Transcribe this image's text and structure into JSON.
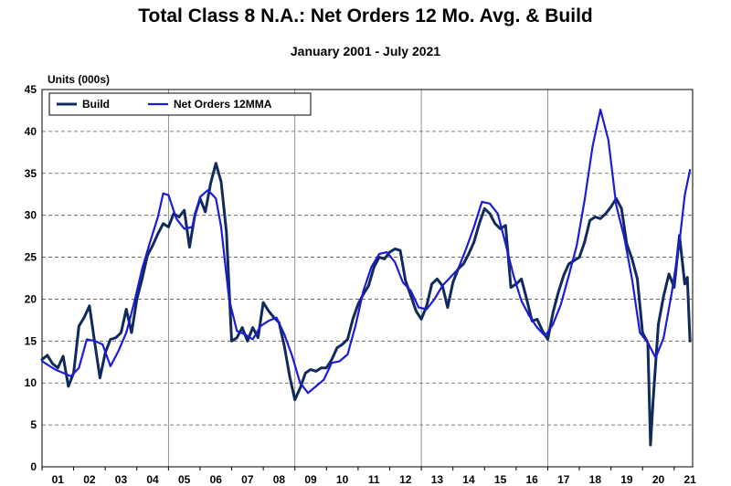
{
  "chart_data": {
    "type": "line",
    "title": "Total Class 8 N.A.: Net Orders 12 Mo. Avg. & Build",
    "subtitle": "January 2001 - July 2021",
    "ylabel": "Units (000s)",
    "xlabel": "",
    "ylim": [
      0,
      45
    ],
    "yticks": [
      0,
      5,
      10,
      15,
      20,
      25,
      30,
      35,
      40,
      45
    ],
    "xlim": [
      "2001-01",
      "2021-07"
    ],
    "x_tick_labels": [
      "01",
      "02",
      "03",
      "04",
      "05",
      "06",
      "07",
      "08",
      "09",
      "10",
      "11",
      "12",
      "13",
      "14",
      "15",
      "16",
      "17",
      "18",
      "19",
      "20",
      "21"
    ],
    "grid": true,
    "legend_position": "top-left",
    "series": [
      {
        "name": "Build",
        "color": "#102a5c",
        "points": [
          [
            "2001-01",
            12.8
          ],
          [
            "2001-03",
            13.3
          ],
          [
            "2001-05",
            12.3
          ],
          [
            "2001-07",
            11.8
          ],
          [
            "2001-09",
            13.2
          ],
          [
            "2001-11",
            9.6
          ],
          [
            "2002-01",
            11.2
          ],
          [
            "2002-03",
            16.8
          ],
          [
            "2002-05",
            17.8
          ],
          [
            "2002-07",
            19.2
          ],
          [
            "2002-09",
            14.8
          ],
          [
            "2002-11",
            10.6
          ],
          [
            "2003-01",
            13.6
          ],
          [
            "2003-03",
            15.2
          ],
          [
            "2003-05",
            15.4
          ],
          [
            "2003-07",
            16.0
          ],
          [
            "2003-09",
            18.8
          ],
          [
            "2003-11",
            16.0
          ],
          [
            "2004-01",
            20.0
          ],
          [
            "2004-03",
            22.4
          ],
          [
            "2004-05",
            25.2
          ],
          [
            "2004-07",
            26.4
          ],
          [
            "2004-09",
            27.8
          ],
          [
            "2004-11",
            29.0
          ],
          [
            "2005-01",
            28.6
          ],
          [
            "2005-03",
            30.2
          ],
          [
            "2005-05",
            29.8
          ],
          [
            "2005-07",
            30.6
          ],
          [
            "2005-09",
            26.2
          ],
          [
            "2005-11",
            30.0
          ],
          [
            "2006-01",
            32.0
          ],
          [
            "2006-03",
            30.4
          ],
          [
            "2006-05",
            33.8
          ],
          [
            "2006-07",
            36.2
          ],
          [
            "2006-09",
            34.0
          ],
          [
            "2006-11",
            28.0
          ],
          [
            "2007-01",
            15.0
          ],
          [
            "2007-03",
            15.4
          ],
          [
            "2007-05",
            16.6
          ],
          [
            "2007-07",
            15.0
          ],
          [
            "2007-09",
            16.6
          ],
          [
            "2007-11",
            15.4
          ],
          [
            "2008-01",
            19.6
          ],
          [
            "2008-03",
            18.6
          ],
          [
            "2008-05",
            17.8
          ],
          [
            "2008-07",
            17.2
          ],
          [
            "2008-09",
            14.4
          ],
          [
            "2008-11",
            10.8
          ],
          [
            "2009-01",
            8.0
          ],
          [
            "2009-03",
            9.4
          ],
          [
            "2009-05",
            11.2
          ],
          [
            "2009-07",
            11.6
          ],
          [
            "2009-09",
            11.4
          ],
          [
            "2009-11",
            11.8
          ],
          [
            "2010-01",
            11.8
          ],
          [
            "2010-03",
            12.8
          ],
          [
            "2010-05",
            14.2
          ],
          [
            "2010-07",
            14.6
          ],
          [
            "2010-09",
            15.2
          ],
          [
            "2010-11",
            17.6
          ],
          [
            "2011-01",
            19.4
          ],
          [
            "2011-03",
            20.6
          ],
          [
            "2011-05",
            21.6
          ],
          [
            "2011-07",
            23.8
          ],
          [
            "2011-09",
            25.0
          ],
          [
            "2011-11",
            24.8
          ],
          [
            "2012-01",
            25.6
          ],
          [
            "2012-03",
            26.0
          ],
          [
            "2012-05",
            25.8
          ],
          [
            "2012-07",
            22.2
          ],
          [
            "2012-09",
            20.4
          ],
          [
            "2012-11",
            18.6
          ],
          [
            "2013-01",
            17.6
          ],
          [
            "2013-03",
            19.2
          ],
          [
            "2013-05",
            21.8
          ],
          [
            "2013-07",
            22.4
          ],
          [
            "2013-09",
            21.6
          ],
          [
            "2013-11",
            19.0
          ],
          [
            "2014-01",
            22.0
          ],
          [
            "2014-03",
            23.6
          ],
          [
            "2014-05",
            24.2
          ],
          [
            "2014-07",
            25.4
          ],
          [
            "2014-09",
            26.8
          ],
          [
            "2014-11",
            29.0
          ],
          [
            "2015-01",
            30.8
          ],
          [
            "2015-03",
            30.2
          ],
          [
            "2015-05",
            29.0
          ],
          [
            "2015-07",
            28.4
          ],
          [
            "2015-09",
            28.8
          ],
          [
            "2015-11",
            21.4
          ],
          [
            "2016-01",
            21.8
          ],
          [
            "2016-03",
            22.4
          ],
          [
            "2016-05",
            20.0
          ],
          [
            "2016-07",
            17.4
          ],
          [
            "2016-09",
            17.6
          ],
          [
            "2016-11",
            16.2
          ],
          [
            "2017-01",
            15.2
          ],
          [
            "2017-03",
            18.4
          ],
          [
            "2017-05",
            20.8
          ],
          [
            "2017-07",
            22.8
          ],
          [
            "2017-09",
            24.2
          ],
          [
            "2017-11",
            24.6
          ],
          [
            "2018-01",
            25.0
          ],
          [
            "2018-03",
            26.8
          ],
          [
            "2018-05",
            29.4
          ],
          [
            "2018-07",
            29.8
          ],
          [
            "2018-09",
            29.6
          ],
          [
            "2018-11",
            30.2
          ],
          [
            "2019-01",
            31.0
          ],
          [
            "2019-03",
            32.0
          ],
          [
            "2019-05",
            30.8
          ],
          [
            "2019-07",
            26.6
          ],
          [
            "2019-09",
            24.8
          ],
          [
            "2019-11",
            22.4
          ],
          [
            "2020-01",
            16.0
          ],
          [
            "2020-03",
            14.8
          ],
          [
            "2020-04",
            2.6
          ],
          [
            "2020-05",
            8.0
          ],
          [
            "2020-07",
            17.0
          ],
          [
            "2020-09",
            20.4
          ],
          [
            "2020-11",
            23.0
          ],
          [
            "2021-01",
            21.4
          ],
          [
            "2021-03",
            27.6
          ],
          [
            "2021-05",
            21.8
          ],
          [
            "2021-06",
            22.6
          ],
          [
            "2021-07",
            15.0
          ]
        ]
      },
      {
        "name": "Net Orders 12MMA",
        "color": "#1c1cd8",
        "points": [
          [
            "2001-01",
            12.6
          ],
          [
            "2001-06",
            11.6
          ],
          [
            "2001-12",
            10.8
          ],
          [
            "2002-03",
            11.8
          ],
          [
            "2002-06",
            15.2
          ],
          [
            "2002-09",
            15.0
          ],
          [
            "2002-12",
            14.6
          ],
          [
            "2003-03",
            12.0
          ],
          [
            "2003-06",
            13.8
          ],
          [
            "2003-09",
            16.0
          ],
          [
            "2003-12",
            19.6
          ],
          [
            "2004-03",
            23.6
          ],
          [
            "2004-06",
            26.8
          ],
          [
            "2004-09",
            29.8
          ],
          [
            "2004-11",
            32.6
          ],
          [
            "2005-01",
            32.4
          ],
          [
            "2005-04",
            29.6
          ],
          [
            "2005-07",
            28.4
          ],
          [
            "2005-10",
            28.6
          ],
          [
            "2006-01",
            32.2
          ],
          [
            "2006-04",
            33.0
          ],
          [
            "2006-07",
            32.0
          ],
          [
            "2006-09",
            28.6
          ],
          [
            "2006-12",
            20.0
          ],
          [
            "2007-03",
            16.2
          ],
          [
            "2007-06",
            15.8
          ],
          [
            "2007-09",
            15.2
          ],
          [
            "2007-12",
            16.8
          ],
          [
            "2008-03",
            17.4
          ],
          [
            "2008-06",
            17.8
          ],
          [
            "2008-09",
            15.8
          ],
          [
            "2008-12",
            13.2
          ],
          [
            "2009-03",
            10.0
          ],
          [
            "2009-06",
            8.8
          ],
          [
            "2009-09",
            9.6
          ],
          [
            "2009-12",
            10.4
          ],
          [
            "2010-03",
            12.4
          ],
          [
            "2010-06",
            12.6
          ],
          [
            "2010-09",
            13.4
          ],
          [
            "2010-12",
            16.8
          ],
          [
            "2011-03",
            21.0
          ],
          [
            "2011-06",
            23.8
          ],
          [
            "2011-09",
            25.4
          ],
          [
            "2011-12",
            25.6
          ],
          [
            "2012-03",
            24.4
          ],
          [
            "2012-06",
            22.0
          ],
          [
            "2012-09",
            21.0
          ],
          [
            "2012-12",
            19.0
          ],
          [
            "2013-03",
            18.8
          ],
          [
            "2013-06",
            20.0
          ],
          [
            "2013-09",
            21.6
          ],
          [
            "2013-12",
            22.6
          ],
          [
            "2014-03",
            23.6
          ],
          [
            "2014-06",
            26.0
          ],
          [
            "2014-09",
            28.6
          ],
          [
            "2014-12",
            31.6
          ],
          [
            "2015-03",
            31.4
          ],
          [
            "2015-06",
            30.2
          ],
          [
            "2015-09",
            26.6
          ],
          [
            "2015-12",
            22.8
          ],
          [
            "2016-03",
            19.8
          ],
          [
            "2016-06",
            18.0
          ],
          [
            "2016-09",
            16.6
          ],
          [
            "2016-12",
            15.6
          ],
          [
            "2017-03",
            17.0
          ],
          [
            "2017-06",
            19.4
          ],
          [
            "2017-09",
            22.8
          ],
          [
            "2017-12",
            26.4
          ],
          [
            "2018-03",
            31.8
          ],
          [
            "2018-06",
            38.2
          ],
          [
            "2018-09",
            42.6
          ],
          [
            "2018-12",
            39.0
          ],
          [
            "2019-03",
            31.2
          ],
          [
            "2019-06",
            27.4
          ],
          [
            "2019-09",
            22.4
          ],
          [
            "2019-12",
            16.0
          ],
          [
            "2020-03",
            14.8
          ],
          [
            "2020-06",
            13.0
          ],
          [
            "2020-09",
            15.4
          ],
          [
            "2020-12",
            20.6
          ],
          [
            "2021-03",
            26.8
          ],
          [
            "2021-05",
            32.4
          ],
          [
            "2021-07",
            35.4
          ]
        ]
      }
    ]
  }
}
